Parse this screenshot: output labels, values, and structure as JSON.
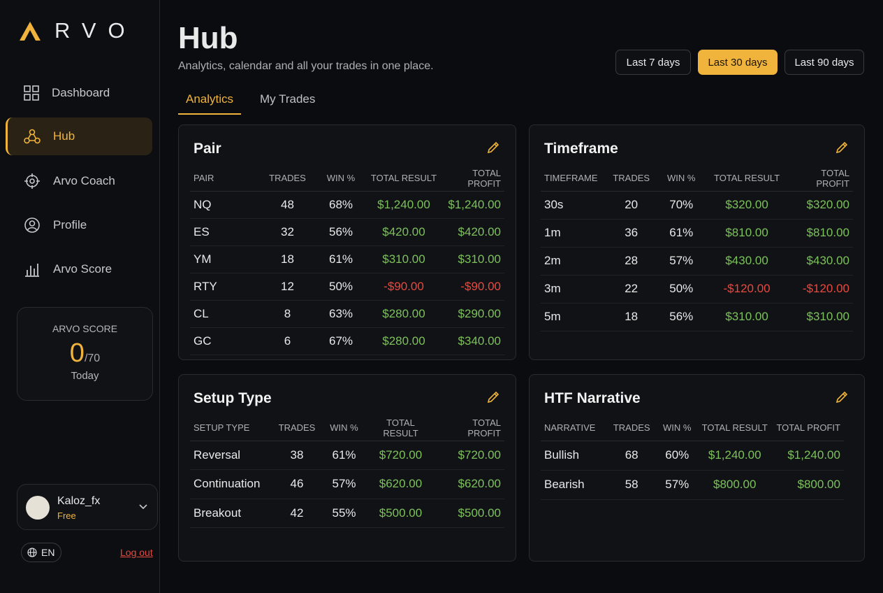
{
  "brand": {
    "logo_text": "RVO"
  },
  "nav": [
    "Dashboard",
    "Hub",
    "Arvo Coach",
    "Profile",
    "Arvo Score"
  ],
  "score_card": {
    "label": "ARVO SCORE",
    "value": 0,
    "max_label": "/70",
    "period": "Today"
  },
  "user": {
    "name": "Kaloz_fx",
    "plan": "Free"
  },
  "language": "EN",
  "logout": "Log out",
  "header": {
    "title": "Hub",
    "subtitle": "Analytics, calendar and all your trades in one place."
  },
  "ranges": [
    "Last 7 days",
    "Last 30 days",
    "Last 90 days"
  ],
  "tabs": [
    "Analytics",
    "My Trades"
  ],
  "panels": [
    {
      "title": "Pair",
      "columns": [
        "PAIR",
        "TRADES",
        "WIN %",
        "TOTAL RESULT",
        "TOTAL PROFIT"
      ],
      "rows": [
        [
          "NQ",
          48,
          "68%",
          "$1,240.00",
          "$1,240.00"
        ],
        [
          "ES",
          32,
          "56%",
          "$420.00",
          "$420.00"
        ],
        [
          "YM",
          18,
          "61%",
          "$310.00",
          "$310.00"
        ],
        [
          "RTY",
          12,
          "50%",
          "-$90.00",
          "-$90.00"
        ],
        [
          "CL",
          8,
          "63%",
          "$280.00",
          "$290.00"
        ],
        [
          "GC",
          6,
          "67%",
          "$280.00",
          "$340.00"
        ]
      ]
    },
    {
      "title": "Timeframe",
      "columns": [
        "TIMEFRAME",
        "TRADES",
        "WIN %",
        "TOTAL RESULT",
        "TOTAL PROFIT"
      ],
      "rows": [
        [
          "30s",
          20,
          "70%",
          "$320.00",
          "$320.00"
        ],
        [
          "1m",
          36,
          "61%",
          "$810.00",
          "$810.00"
        ],
        [
          "2m",
          28,
          "57%",
          "$430.00",
          "$430.00"
        ],
        [
          "3m",
          22,
          "50%",
          "-$120.00",
          "-$120.00"
        ],
        [
          "5m",
          18,
          "56%",
          "$310.00",
          "$310.00"
        ]
      ]
    },
    {
      "title": "Setup Type",
      "columns": [
        "SETUP TYPE",
        "TRADES",
        "WIN %",
        "TOTAL RESULT",
        "TOTAL PROFIT"
      ],
      "rows": [
        [
          "Reversal",
          38,
          "61%",
          "$720.00",
          "$720.00"
        ],
        [
          "Continuation",
          46,
          "57%",
          "$620.00",
          "$620.00"
        ],
        [
          "Breakout",
          42,
          "55%",
          "$500.00",
          "$500.00"
        ]
      ]
    },
    {
      "title": "HTF Narrative",
      "columns": [
        "NARRATIVE",
        "TRADES",
        "WIN %",
        "TOTAL RESULT",
        "TOTAL PROFIT"
      ],
      "rows": [
        [
          "Bullish",
          68,
          "60%",
          "$1,240.00",
          "$1,240.00"
        ],
        [
          "Bearish",
          58,
          "57%",
          "$800.00",
          "$800.00"
        ]
      ]
    }
  ]
}
